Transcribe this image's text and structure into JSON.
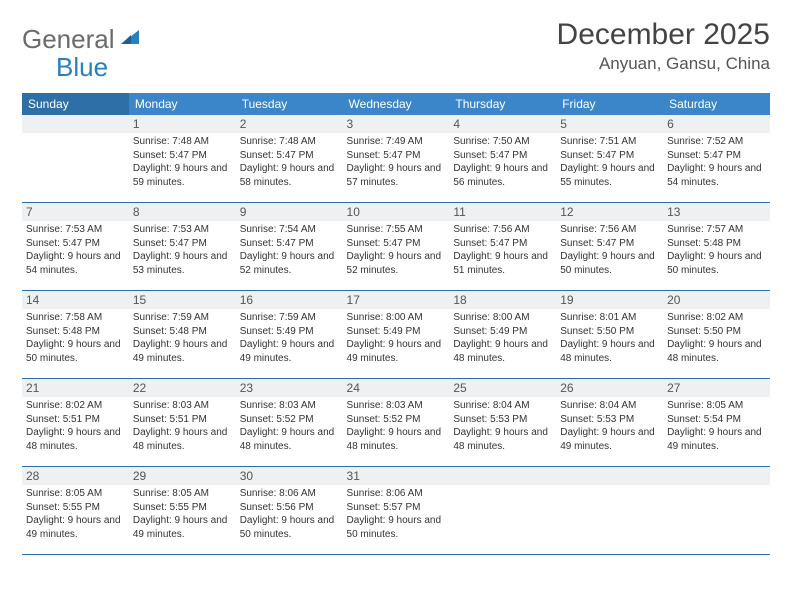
{
  "brand": {
    "word1": "General",
    "word2": "Blue"
  },
  "title": "December 2025",
  "location": "Anyuan, Gansu, China",
  "colors": {
    "header_bg": "#3a86c8",
    "header_bg_sunday": "#2f6fa8",
    "daynum_bg": "#eef0f2",
    "rule": "#2a6fa8",
    "brand_gray": "#6b6b6b",
    "brand_blue": "#2a7fbf"
  },
  "weekdays": [
    "Sunday",
    "Monday",
    "Tuesday",
    "Wednesday",
    "Thursday",
    "Friday",
    "Saturday"
  ],
  "weeks": [
    [
      null,
      {
        "n": "1",
        "sr": "Sunrise: 7:48 AM",
        "ss": "Sunset: 5:47 PM",
        "dl": "Daylight: 9 hours and 59 minutes."
      },
      {
        "n": "2",
        "sr": "Sunrise: 7:48 AM",
        "ss": "Sunset: 5:47 PM",
        "dl": "Daylight: 9 hours and 58 minutes."
      },
      {
        "n": "3",
        "sr": "Sunrise: 7:49 AM",
        "ss": "Sunset: 5:47 PM",
        "dl": "Daylight: 9 hours and 57 minutes."
      },
      {
        "n": "4",
        "sr": "Sunrise: 7:50 AM",
        "ss": "Sunset: 5:47 PM",
        "dl": "Daylight: 9 hours and 56 minutes."
      },
      {
        "n": "5",
        "sr": "Sunrise: 7:51 AM",
        "ss": "Sunset: 5:47 PM",
        "dl": "Daylight: 9 hours and 55 minutes."
      },
      {
        "n": "6",
        "sr": "Sunrise: 7:52 AM",
        "ss": "Sunset: 5:47 PM",
        "dl": "Daylight: 9 hours and 54 minutes."
      }
    ],
    [
      {
        "n": "7",
        "sr": "Sunrise: 7:53 AM",
        "ss": "Sunset: 5:47 PM",
        "dl": "Daylight: 9 hours and 54 minutes."
      },
      {
        "n": "8",
        "sr": "Sunrise: 7:53 AM",
        "ss": "Sunset: 5:47 PM",
        "dl": "Daylight: 9 hours and 53 minutes."
      },
      {
        "n": "9",
        "sr": "Sunrise: 7:54 AM",
        "ss": "Sunset: 5:47 PM",
        "dl": "Daylight: 9 hours and 52 minutes."
      },
      {
        "n": "10",
        "sr": "Sunrise: 7:55 AM",
        "ss": "Sunset: 5:47 PM",
        "dl": "Daylight: 9 hours and 52 minutes."
      },
      {
        "n": "11",
        "sr": "Sunrise: 7:56 AM",
        "ss": "Sunset: 5:47 PM",
        "dl": "Daylight: 9 hours and 51 minutes."
      },
      {
        "n": "12",
        "sr": "Sunrise: 7:56 AM",
        "ss": "Sunset: 5:47 PM",
        "dl": "Daylight: 9 hours and 50 minutes."
      },
      {
        "n": "13",
        "sr": "Sunrise: 7:57 AM",
        "ss": "Sunset: 5:48 PM",
        "dl": "Daylight: 9 hours and 50 minutes."
      }
    ],
    [
      {
        "n": "14",
        "sr": "Sunrise: 7:58 AM",
        "ss": "Sunset: 5:48 PM",
        "dl": "Daylight: 9 hours and 50 minutes."
      },
      {
        "n": "15",
        "sr": "Sunrise: 7:59 AM",
        "ss": "Sunset: 5:48 PM",
        "dl": "Daylight: 9 hours and 49 minutes."
      },
      {
        "n": "16",
        "sr": "Sunrise: 7:59 AM",
        "ss": "Sunset: 5:49 PM",
        "dl": "Daylight: 9 hours and 49 minutes."
      },
      {
        "n": "17",
        "sr": "Sunrise: 8:00 AM",
        "ss": "Sunset: 5:49 PM",
        "dl": "Daylight: 9 hours and 49 minutes."
      },
      {
        "n": "18",
        "sr": "Sunrise: 8:00 AM",
        "ss": "Sunset: 5:49 PM",
        "dl": "Daylight: 9 hours and 48 minutes."
      },
      {
        "n": "19",
        "sr": "Sunrise: 8:01 AM",
        "ss": "Sunset: 5:50 PM",
        "dl": "Daylight: 9 hours and 48 minutes."
      },
      {
        "n": "20",
        "sr": "Sunrise: 8:02 AM",
        "ss": "Sunset: 5:50 PM",
        "dl": "Daylight: 9 hours and 48 minutes."
      }
    ],
    [
      {
        "n": "21",
        "sr": "Sunrise: 8:02 AM",
        "ss": "Sunset: 5:51 PM",
        "dl": "Daylight: 9 hours and 48 minutes."
      },
      {
        "n": "22",
        "sr": "Sunrise: 8:03 AM",
        "ss": "Sunset: 5:51 PM",
        "dl": "Daylight: 9 hours and 48 minutes."
      },
      {
        "n": "23",
        "sr": "Sunrise: 8:03 AM",
        "ss": "Sunset: 5:52 PM",
        "dl": "Daylight: 9 hours and 48 minutes."
      },
      {
        "n": "24",
        "sr": "Sunrise: 8:03 AM",
        "ss": "Sunset: 5:52 PM",
        "dl": "Daylight: 9 hours and 48 minutes."
      },
      {
        "n": "25",
        "sr": "Sunrise: 8:04 AM",
        "ss": "Sunset: 5:53 PM",
        "dl": "Daylight: 9 hours and 48 minutes."
      },
      {
        "n": "26",
        "sr": "Sunrise: 8:04 AM",
        "ss": "Sunset: 5:53 PM",
        "dl": "Daylight: 9 hours and 49 minutes."
      },
      {
        "n": "27",
        "sr": "Sunrise: 8:05 AM",
        "ss": "Sunset: 5:54 PM",
        "dl": "Daylight: 9 hours and 49 minutes."
      }
    ],
    [
      {
        "n": "28",
        "sr": "Sunrise: 8:05 AM",
        "ss": "Sunset: 5:55 PM",
        "dl": "Daylight: 9 hours and 49 minutes."
      },
      {
        "n": "29",
        "sr": "Sunrise: 8:05 AM",
        "ss": "Sunset: 5:55 PM",
        "dl": "Daylight: 9 hours and 49 minutes."
      },
      {
        "n": "30",
        "sr": "Sunrise: 8:06 AM",
        "ss": "Sunset: 5:56 PM",
        "dl": "Daylight: 9 hours and 50 minutes."
      },
      {
        "n": "31",
        "sr": "Sunrise: 8:06 AM",
        "ss": "Sunset: 5:57 PM",
        "dl": "Daylight: 9 hours and 50 minutes."
      },
      null,
      null,
      null
    ]
  ]
}
